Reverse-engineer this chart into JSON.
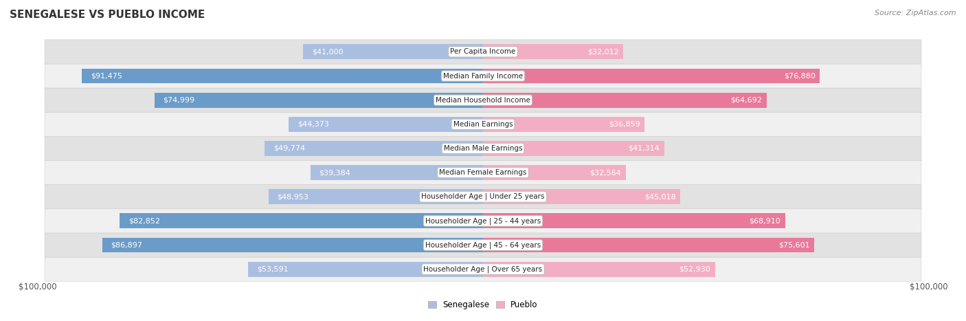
{
  "title": "SENEGALESE VS PUEBLO INCOME",
  "source": "Source: ZipAtlas.com",
  "categories": [
    "Per Capita Income",
    "Median Family Income",
    "Median Household Income",
    "Median Earnings",
    "Median Male Earnings",
    "Median Female Earnings",
    "Householder Age | Under 25 years",
    "Householder Age | 25 - 44 years",
    "Householder Age | 45 - 64 years",
    "Householder Age | Over 65 years"
  ],
  "senegalese_values": [
    41000,
    91475,
    74999,
    44373,
    49774,
    39384,
    48953,
    82852,
    86897,
    53591
  ],
  "pueblo_values": [
    32012,
    76880,
    64692,
    36859,
    41314,
    32564,
    45018,
    68910,
    75601,
    52930
  ],
  "senegalese_labels": [
    "$41,000",
    "$91,475",
    "$74,999",
    "$44,373",
    "$49,774",
    "$39,384",
    "$48,953",
    "$82,852",
    "$86,897",
    "$53,591"
  ],
  "pueblo_labels": [
    "$32,012",
    "$76,880",
    "$64,692",
    "$36,859",
    "$41,314",
    "$32,564",
    "$45,018",
    "$68,910",
    "$75,601",
    "$52,930"
  ],
  "max_value": 100000,
  "color_senegalese_light": "#aabfe0",
  "color_senegalese_dark": "#6b9bc8",
  "color_pueblo_light": "#f2afc4",
  "color_pueblo_dark": "#e8799a",
  "color_row_even": "#f0f0f0",
  "color_row_odd": "#e2e2e2",
  "xlabel_left": "$100,000",
  "xlabel_right": "$100,000",
  "legend_senegalese": "Senegalese",
  "legend_pueblo": "Pueblo",
  "title_fontsize": 11,
  "source_fontsize": 8,
  "bar_label_fontsize": 8,
  "category_fontsize": 7.5,
  "axis_label_fontsize": 8.5,
  "dark_label_threshold": 55000,
  "inside_label_threshold": 20000
}
